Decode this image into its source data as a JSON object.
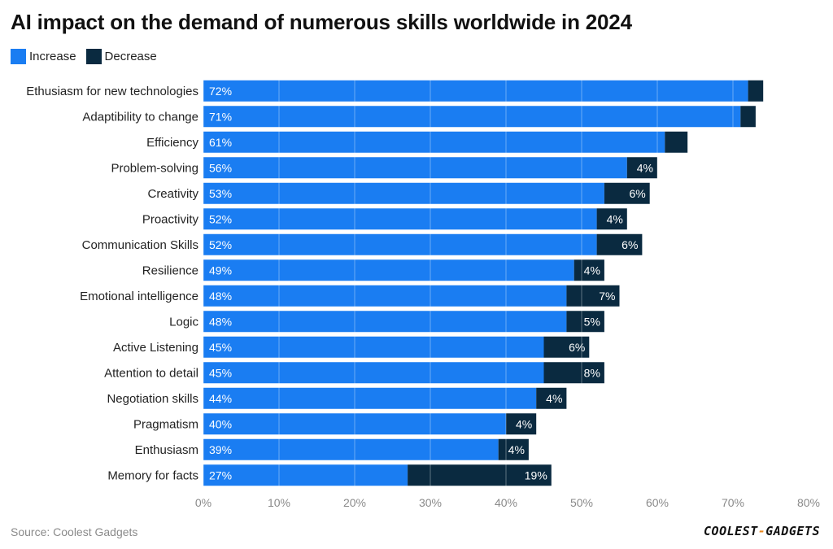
{
  "title": "AI impact on the demand of numerous skills worldwide in 2024",
  "legend": [
    {
      "label": "Increase",
      "color": "#1a7df2"
    },
    {
      "label": "Decrease",
      "color": "#0a2a40"
    }
  ],
  "footer": {
    "source": "Source: Coolest Gadgets",
    "logo_left": "COOLEST",
    "logo_sep": "-",
    "logo_right": "GADGETS"
  },
  "chart_data": {
    "type": "bar",
    "orientation": "horizontal",
    "stacked": true,
    "categories": [
      "Ethusiasm for new technologies",
      "Adaptibility to change",
      "Efficiency",
      "Problem-solving",
      "Creativity",
      "Proactivity",
      "Communication Skills",
      "Resilience",
      "Emotional intelligence",
      "Logic",
      "Active Listening",
      "Attention to detail",
      "Negotiation skills",
      "Pragmatism",
      "Enthusiasm",
      "Memory for facts"
    ],
    "series": [
      {
        "name": "Increase",
        "color": "#1a7df2",
        "values": [
          72,
          71,
          61,
          56,
          53,
          52,
          52,
          49,
          48,
          48,
          45,
          45,
          44,
          40,
          39,
          27
        ],
        "labels": [
          "72%",
          "71%",
          "61%",
          "56%",
          "53%",
          "52%",
          "52%",
          "49%",
          "48%",
          "48%",
          "45%",
          "45%",
          "44%",
          "40%",
          "39%",
          "27%"
        ]
      },
      {
        "name": "Decrease",
        "color": "#0a2a40",
        "values": [
          2,
          2,
          3,
          4,
          6,
          4,
          6,
          4,
          7,
          5,
          6,
          8,
          4,
          4,
          4,
          19
        ],
        "labels": [
          "",
          "",
          "",
          "4%",
          "6%",
          "4%",
          "6%",
          "4%",
          "7%",
          "5%",
          "6%",
          "8%",
          "4%",
          "4%",
          "4%",
          "19%"
        ]
      }
    ],
    "xlim": [
      0,
      80
    ],
    "xticks": [
      "0%",
      "10%",
      "20%",
      "30%",
      "40%",
      "50%",
      "60%",
      "70%",
      "80%"
    ],
    "grid": true
  }
}
